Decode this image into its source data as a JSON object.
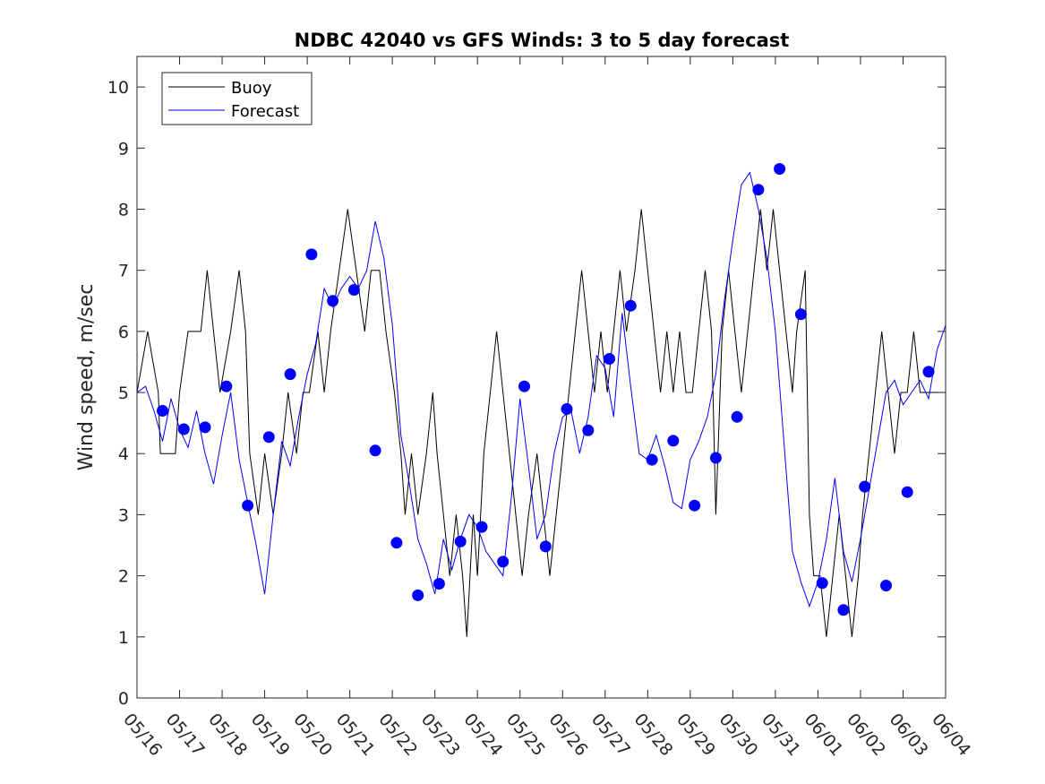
{
  "chart_data": {
    "type": "line",
    "title": "NDBC 42040 vs GFS Winds: 3 to 5 day forecast",
    "xlabel": "",
    "ylabel": "Wind speed, m/sec",
    "x_tick_labels": [
      "05/16",
      "05/17",
      "05/18",
      "05/19",
      "05/20",
      "05/21",
      "05/22",
      "05/23",
      "05/24",
      "05/25",
      "05/26",
      "05/27",
      "05/28",
      "05/29",
      "05/30",
      "05/31",
      "06/01",
      "06/02",
      "06/03",
      "06/04"
    ],
    "y_ticks": [
      0,
      1,
      2,
      3,
      4,
      5,
      6,
      7,
      8,
      9,
      10
    ],
    "xlim": [
      0,
      19
    ],
    "ylim": [
      0,
      10.5
    ],
    "grid": false,
    "legend_position": "top-left",
    "series": [
      {
        "name": "Buoy",
        "color": "#000000",
        "style": "line",
        "points": [
          [
            0.0,
            5
          ],
          [
            0.25,
            6
          ],
          [
            0.5,
            5
          ],
          [
            0.55,
            4
          ],
          [
            0.9,
            4
          ],
          [
            1.0,
            5
          ],
          [
            1.2,
            6
          ],
          [
            1.5,
            6
          ],
          [
            1.65,
            7
          ],
          [
            1.8,
            6
          ],
          [
            1.95,
            5
          ],
          [
            2.2,
            6
          ],
          [
            2.4,
            7
          ],
          [
            2.55,
            6
          ],
          [
            2.65,
            4
          ],
          [
            2.85,
            3
          ],
          [
            3.0,
            4
          ],
          [
            3.2,
            3
          ],
          [
            3.4,
            4
          ],
          [
            3.55,
            5
          ],
          [
            3.75,
            4
          ],
          [
            3.9,
            5
          ],
          [
            4.05,
            5
          ],
          [
            4.25,
            6
          ],
          [
            4.4,
            5
          ],
          [
            4.55,
            6
          ],
          [
            4.75,
            7
          ],
          [
            4.95,
            8
          ],
          [
            5.15,
            7
          ],
          [
            5.35,
            6
          ],
          [
            5.5,
            7
          ],
          [
            5.7,
            7
          ],
          [
            5.85,
            6
          ],
          [
            6.05,
            5
          ],
          [
            6.2,
            4
          ],
          [
            6.3,
            3
          ],
          [
            6.45,
            4
          ],
          [
            6.6,
            3
          ],
          [
            6.8,
            4
          ],
          [
            6.95,
            5
          ],
          [
            7.05,
            4
          ],
          [
            7.2,
            3
          ],
          [
            7.35,
            2
          ],
          [
            7.5,
            3
          ],
          [
            7.65,
            2
          ],
          [
            7.75,
            1
          ],
          [
            7.9,
            3
          ],
          [
            8.0,
            2
          ],
          [
            8.15,
            4
          ],
          [
            8.3,
            5
          ],
          [
            8.45,
            6
          ],
          [
            8.6,
            5
          ],
          [
            8.75,
            4
          ],
          [
            8.9,
            3
          ],
          [
            9.05,
            2
          ],
          [
            9.2,
            3
          ],
          [
            9.4,
            4
          ],
          [
            9.55,
            3
          ],
          [
            9.7,
            2
          ],
          [
            9.85,
            3
          ],
          [
            10.0,
            4
          ],
          [
            10.15,
            5
          ],
          [
            10.3,
            6
          ],
          [
            10.45,
            7
          ],
          [
            10.6,
            6
          ],
          [
            10.75,
            5
          ],
          [
            10.9,
            6
          ],
          [
            11.05,
            5
          ],
          [
            11.2,
            6
          ],
          [
            11.35,
            7
          ],
          [
            11.5,
            6
          ],
          [
            11.7,
            7
          ],
          [
            11.85,
            8
          ],
          [
            12.0,
            7
          ],
          [
            12.15,
            6
          ],
          [
            12.3,
            5
          ],
          [
            12.45,
            6
          ],
          [
            12.6,
            5
          ],
          [
            12.75,
            6
          ],
          [
            12.9,
            5
          ],
          [
            13.05,
            5
          ],
          [
            13.2,
            6
          ],
          [
            13.35,
            7
          ],
          [
            13.5,
            6
          ],
          [
            13.6,
            3
          ],
          [
            13.75,
            6
          ],
          [
            13.9,
            7
          ],
          [
            14.05,
            6
          ],
          [
            14.2,
            5
          ],
          [
            14.35,
            6
          ],
          [
            14.5,
            7
          ],
          [
            14.65,
            8
          ],
          [
            14.8,
            7
          ],
          [
            14.95,
            8
          ],
          [
            15.1,
            7
          ],
          [
            15.25,
            6
          ],
          [
            15.4,
            5
          ],
          [
            15.5,
            6
          ],
          [
            15.7,
            7
          ],
          [
            15.8,
            3
          ],
          [
            15.9,
            2
          ],
          [
            16.05,
            2
          ],
          [
            16.2,
            1
          ],
          [
            16.35,
            2
          ],
          [
            16.5,
            3
          ],
          [
            16.65,
            2
          ],
          [
            16.8,
            1
          ],
          [
            16.95,
            2
          ],
          [
            17.05,
            3
          ],
          [
            17.2,
            4
          ],
          [
            17.35,
            5
          ],
          [
            17.5,
            6
          ],
          [
            17.65,
            5
          ],
          [
            17.8,
            4
          ],
          [
            17.95,
            5
          ],
          [
            18.1,
            5
          ],
          [
            18.25,
            6
          ],
          [
            18.4,
            5
          ],
          [
            18.55,
            5
          ],
          [
            18.7,
            5
          ],
          [
            18.85,
            5
          ],
          [
            19.0,
            5
          ]
        ]
      },
      {
        "name": "Forecast",
        "color": "#0000ff",
        "style": "line",
        "points": [
          [
            0.0,
            5.0
          ],
          [
            0.2,
            5.1
          ],
          [
            0.4,
            4.7
          ],
          [
            0.6,
            4.2
          ],
          [
            0.8,
            4.9
          ],
          [
            1.0,
            4.4
          ],
          [
            1.2,
            4.1
          ],
          [
            1.4,
            4.7
          ],
          [
            1.6,
            4.0
          ],
          [
            1.8,
            3.5
          ],
          [
            2.0,
            4.3
          ],
          [
            2.2,
            5.0
          ],
          [
            2.4,
            3.9
          ],
          [
            2.6,
            3.2
          ],
          [
            2.8,
            2.5
          ],
          [
            3.0,
            1.7
          ],
          [
            3.2,
            3.0
          ],
          [
            3.4,
            4.2
          ],
          [
            3.6,
            3.8
          ],
          [
            3.8,
            4.6
          ],
          [
            4.0,
            5.3
          ],
          [
            4.2,
            5.8
          ],
          [
            4.4,
            6.7
          ],
          [
            4.6,
            6.4
          ],
          [
            4.8,
            6.7
          ],
          [
            5.0,
            6.9
          ],
          [
            5.2,
            6.7
          ],
          [
            5.4,
            7.0
          ],
          [
            5.6,
            7.8
          ],
          [
            5.8,
            7.2
          ],
          [
            6.0,
            6.1
          ],
          [
            6.2,
            4.3
          ],
          [
            6.4,
            3.5
          ],
          [
            6.6,
            2.6
          ],
          [
            6.8,
            2.2
          ],
          [
            7.0,
            1.7
          ],
          [
            7.2,
            2.6
          ],
          [
            7.4,
            2.1
          ],
          [
            7.6,
            2.6
          ],
          [
            7.8,
            3.0
          ],
          [
            8.0,
            2.8
          ],
          [
            8.2,
            2.4
          ],
          [
            8.4,
            2.2
          ],
          [
            8.6,
            2.0
          ],
          [
            8.8,
            3.3
          ],
          [
            9.0,
            4.9
          ],
          [
            9.2,
            3.8
          ],
          [
            9.4,
            2.6
          ],
          [
            9.6,
            3.0
          ],
          [
            9.8,
            4.0
          ],
          [
            10.0,
            4.6
          ],
          [
            10.2,
            4.7
          ],
          [
            10.4,
            4.0
          ],
          [
            10.6,
            4.6
          ],
          [
            10.8,
            5.6
          ],
          [
            11.0,
            5.4
          ],
          [
            11.2,
            4.6
          ],
          [
            11.4,
            6.3
          ],
          [
            11.6,
            5.1
          ],
          [
            11.8,
            4.0
          ],
          [
            12.0,
            3.9
          ],
          [
            12.2,
            4.3
          ],
          [
            12.4,
            3.8
          ],
          [
            12.6,
            3.2
          ],
          [
            12.8,
            3.1
          ],
          [
            13.0,
            3.9
          ],
          [
            13.2,
            4.2
          ],
          [
            13.4,
            4.6
          ],
          [
            13.6,
            5.3
          ],
          [
            13.8,
            6.5
          ],
          [
            14.0,
            7.5
          ],
          [
            14.2,
            8.4
          ],
          [
            14.4,
            8.6
          ],
          [
            14.6,
            8.0
          ],
          [
            14.8,
            7.2
          ],
          [
            15.0,
            6.0
          ],
          [
            15.2,
            4.2
          ],
          [
            15.4,
            2.4
          ],
          [
            15.6,
            1.9
          ],
          [
            15.8,
            1.5
          ],
          [
            16.0,
            1.9
          ],
          [
            16.2,
            2.6
          ],
          [
            16.4,
            3.6
          ],
          [
            16.6,
            2.4
          ],
          [
            16.8,
            1.9
          ],
          [
            17.0,
            2.6
          ],
          [
            17.2,
            3.4
          ],
          [
            17.4,
            4.2
          ],
          [
            17.6,
            5.0
          ],
          [
            17.8,
            5.2
          ],
          [
            18.0,
            4.8
          ],
          [
            18.2,
            5.0
          ],
          [
            18.4,
            5.2
          ],
          [
            18.6,
            4.9
          ],
          [
            18.8,
            5.7
          ],
          [
            19.0,
            6.1
          ]
        ]
      },
      {
        "name": "",
        "color": "#0000ff",
        "style": "markers",
        "points": [
          [
            0.6,
            4.7
          ],
          [
            1.1,
            4.4
          ],
          [
            1.6,
            4.43
          ],
          [
            2.1,
            5.1
          ],
          [
            2.6,
            3.15
          ],
          [
            3.1,
            4.27
          ],
          [
            3.6,
            5.3
          ],
          [
            4.1,
            7.26
          ],
          [
            4.6,
            6.5
          ],
          [
            5.1,
            6.68
          ],
          [
            5.6,
            4.05
          ],
          [
            6.1,
            2.54
          ],
          [
            6.6,
            1.68
          ],
          [
            7.1,
            1.87
          ],
          [
            7.6,
            2.56
          ],
          [
            8.1,
            2.8
          ],
          [
            8.6,
            2.23
          ],
          [
            9.1,
            5.1
          ],
          [
            9.6,
            2.48
          ],
          [
            10.1,
            4.73
          ],
          [
            10.6,
            4.38
          ],
          [
            11.1,
            5.55
          ],
          [
            11.6,
            6.42
          ],
          [
            12.1,
            3.9
          ],
          [
            12.6,
            4.21
          ],
          [
            13.1,
            3.15
          ],
          [
            13.6,
            3.93
          ],
          [
            14.1,
            4.6
          ],
          [
            14.6,
            8.32
          ],
          [
            15.1,
            8.66
          ],
          [
            15.6,
            6.28
          ],
          [
            16.1,
            1.88
          ],
          [
            16.6,
            1.44
          ],
          [
            17.1,
            3.46
          ],
          [
            17.6,
            1.84
          ],
          [
            18.1,
            3.37
          ],
          [
            18.6,
            5.34
          ]
        ]
      }
    ]
  }
}
